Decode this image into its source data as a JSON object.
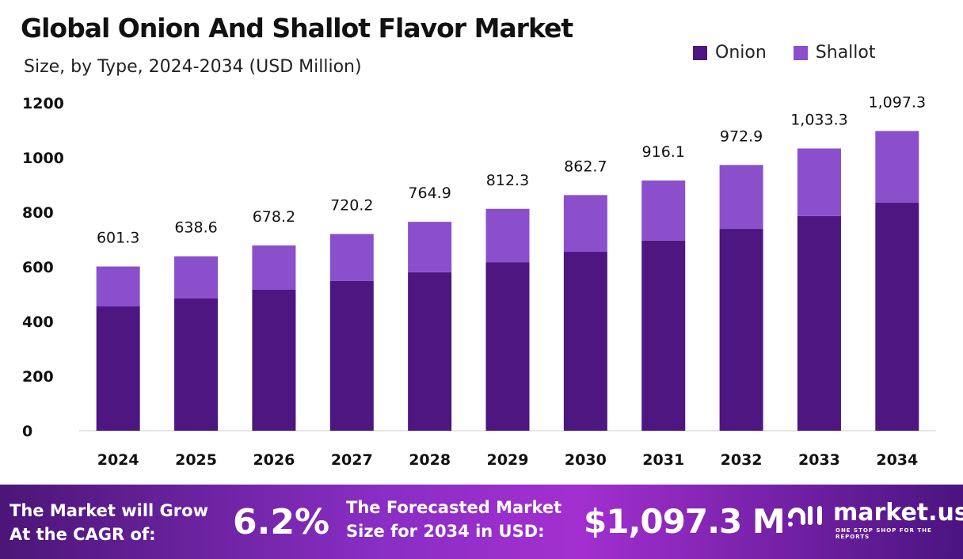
{
  "chart_data": {
    "type": "bar",
    "stacked": true,
    "title": "Global Onion And Shallot Flavor Market",
    "subtitle": "Size, by Type, 2024-2034 (USD Million)",
    "categories": [
      "2024",
      "2025",
      "2026",
      "2027",
      "2028",
      "2029",
      "2030",
      "2031",
      "2032",
      "2033",
      "2034"
    ],
    "series": [
      {
        "name": "Onion",
        "color": "#4e1680",
        "values": [
          455,
          484,
          516,
          548,
          580,
          617,
          655,
          696,
          739,
          786,
          835
        ]
      },
      {
        "name": "Shallot",
        "color": "#8b4fcc",
        "values": [
          146.3,
          154.6,
          162.2,
          172.2,
          184.9,
          195.3,
          207.7,
          220.1,
          233.9,
          247.3,
          262.3
        ]
      }
    ],
    "totals_labels": [
      "601.3",
      "638.6",
      "678.2",
      "720.2",
      "764.9",
      "812.3",
      "862.7",
      "916.1",
      "972.9",
      "1,033.3",
      "1,097.3"
    ],
    "totals": [
      601.3,
      638.6,
      678.2,
      720.2,
      764.9,
      812.3,
      862.7,
      916.1,
      972.9,
      1033.3,
      1097.3
    ],
    "ylim": [
      0,
      1200
    ],
    "yticks": [
      "0",
      "200",
      "400",
      "600",
      "800",
      "1000",
      "1200"
    ],
    "grid": false,
    "legend": "top-right"
  },
  "footer": {
    "cagr_label_1": "The Market will Grow",
    "cagr_label_2": "At the CAGR of:",
    "cagr_value": "6.2%",
    "forecast_label_1": "The Forecasted Market",
    "forecast_label_2": "Size for 2034 in USD:",
    "forecast_value": "$1,097.3 M",
    "brand": "market.us",
    "tagline": "ONE STOP SHOP FOR THE REPORTS"
  }
}
